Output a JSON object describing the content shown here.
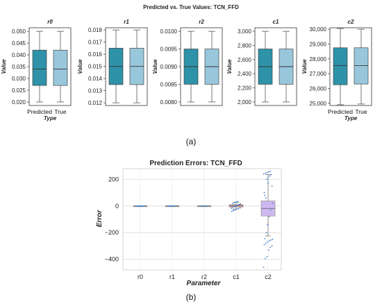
{
  "chart_data": [
    {
      "type": "box",
      "title": "Predicted vs. True Values: TCN_FFD",
      "caption": "(a)",
      "colors": {
        "Predicted": "#2e92a8",
        "True": "#98c7dc"
      },
      "panels": [
        {
          "title": "r0",
          "ylabel": "Value",
          "xlabel": "Type",
          "categories": [
            "Predicted",
            "True"
          ],
          "ylim": [
            0.0185,
            0.0515
          ],
          "yticks": [
            0.02,
            0.025,
            0.03,
            0.035,
            0.04,
            0.045,
            0.05
          ],
          "ytick_labels": [
            "0.020",
            "0.025",
            "0.030",
            "0.035",
            "0.040",
            "0.045",
            "0.050"
          ],
          "boxes": [
            {
              "whisker_low": 0.02,
              "q1": 0.027,
              "median": 0.034,
              "q3": 0.042,
              "whisker_high": 0.05
            },
            {
              "whisker_low": 0.02,
              "q1": 0.027,
              "median": 0.034,
              "q3": 0.042,
              "whisker_high": 0.05
            }
          ]
        },
        {
          "title": "r1",
          "ylabel": "Value",
          "xlabel": "",
          "categories": [
            "",
            ""
          ],
          "ylim": [
            0.01178,
            0.01818
          ],
          "yticks": [
            0.012,
            0.013,
            0.014,
            0.015,
            0.016,
            0.017,
            0.018
          ],
          "ytick_labels": [
            "0.012",
            "0.013",
            "0.014",
            "0.015",
            "0.016",
            "0.017",
            "0.018"
          ],
          "boxes": [
            {
              "whisker_low": 0.012,
              "q1": 0.0135,
              "median": 0.015,
              "q3": 0.0165,
              "whisker_high": 0.018
            },
            {
              "whisker_low": 0.012,
              "q1": 0.0135,
              "median": 0.015,
              "q3": 0.0165,
              "whisker_high": 0.018
            }
          ]
        },
        {
          "title": "r2",
          "ylabel": "Value",
          "xlabel": "",
          "categories": [
            "",
            ""
          ],
          "ylim": [
            0.0079,
            0.0101
          ],
          "yticks": [
            0.008,
            0.0085,
            0.009,
            0.0095,
            0.01
          ],
          "ytick_labels": [
            "0.0080",
            "0.0085",
            "0.0090",
            "0.0095",
            "0.0100"
          ],
          "boxes": [
            {
              "whisker_low": 0.008,
              "q1": 0.0085,
              "median": 0.009,
              "q3": 0.0095,
              "whisker_high": 0.01
            },
            {
              "whisker_low": 0.008,
              "q1": 0.0085,
              "median": 0.009,
              "q3": 0.0095,
              "whisker_high": 0.01
            }
          ]
        },
        {
          "title": "c1",
          "ylabel": "Value",
          "xlabel": "",
          "categories": [
            "",
            ""
          ],
          "ylim": [
            1950,
            3050
          ],
          "yticks": [
            2000,
            2200,
            2400,
            2600,
            2800,
            3000
          ],
          "ytick_labels": [
            "2,000",
            "2,200",
            "2,400",
            "2,600",
            "2,800",
            "3,000"
          ],
          "boxes": [
            {
              "whisker_low": 2000,
              "q1": 2250,
              "median": 2500,
              "q3": 2750,
              "whisker_high": 3000
            },
            {
              "whisker_low": 2000,
              "q1": 2250,
              "median": 2500,
              "q3": 2750,
              "whisker_high": 3000
            }
          ]
        },
        {
          "title": "c2",
          "ylabel": "Value",
          "xlabel": "Type",
          "categories": [
            "Predicted",
            "True"
          ],
          "ylim": [
            24850,
            30100
          ],
          "yticks": [
            25000,
            26000,
            27000,
            28000,
            29000,
            30000
          ],
          "ytick_labels": [
            "25,000",
            "26,000",
            "27,000",
            "28,000",
            "29,000",
            "30,000"
          ],
          "boxes": [
            {
              "whisker_low": 24900,
              "q1": 26250,
              "median": 27550,
              "q3": 28750,
              "whisker_high": 30050
            },
            {
              "whisker_low": 24950,
              "q1": 26300,
              "median": 27550,
              "q3": 28750,
              "whisker_high": 30000
            }
          ]
        }
      ]
    },
    {
      "type": "box",
      "title": "Prediction Errors: TCN_FFD",
      "caption": "(b)",
      "xlabel": "Parameter",
      "ylabel": "Error",
      "categories": [
        "r0",
        "r1",
        "r2",
        "c1",
        "c2"
      ],
      "ylim": [
        -480,
        280
      ],
      "yticks": [
        -400,
        -200,
        0,
        200
      ],
      "ytick_labels": [
        "−400",
        "−200",
        "0",
        "200"
      ],
      "grid": true,
      "box_colors": [
        "#a6cee3",
        "#b2df8a",
        "#fbb4ae",
        "#e8a090",
        "#cdb8ef"
      ],
      "point_color": "#3d7fd0",
      "boxes": [
        {
          "whisker_low": -1.5,
          "q1": -0.5,
          "median": 0,
          "q3": 0.5,
          "whisker_high": 1.5
        },
        {
          "whisker_low": -1.5,
          "q1": -0.5,
          "median": 0,
          "q3": 0.5,
          "whisker_high": 1.5
        },
        {
          "whisker_low": -1.5,
          "q1": -0.5,
          "median": 0,
          "q3": 0.5,
          "whisker_high": 1.5
        },
        {
          "whisker_low": -22,
          "q1": -8,
          "median": 1,
          "q3": 10,
          "whisker_high": 28
        },
        {
          "whisker_low": -225,
          "q1": -75,
          "median": -18,
          "q3": 38,
          "whisker_high": 235
        }
      ],
      "points": {
        "r0": [
          -1,
          0,
          1,
          0.5,
          -0.5,
          0.8,
          -0.8,
          0.2,
          -0.3,
          0.6
        ],
        "r1": [
          -1,
          0,
          1,
          0.5,
          -0.5,
          0.8,
          -0.8,
          0.2
        ],
        "r2": [
          -1,
          0,
          1,
          0.5,
          -0.5,
          0.8
        ],
        "c1": [
          -40,
          -35,
          -30,
          -25,
          -20,
          -15,
          -10,
          -5,
          0,
          5,
          10,
          15,
          20,
          25,
          30,
          35,
          12,
          -18,
          -28,
          8
        ],
        "c2": [
          -460,
          -395,
          -380,
          -330,
          -310,
          -300,
          -290,
          -280,
          -270,
          -260,
          -255,
          -250,
          -245,
          200,
          210,
          225,
          235,
          240,
          245,
          250,
          255,
          260,
          150,
          100,
          60,
          -140,
          -80,
          -30,
          20,
          80,
          -200,
          170
        ]
      }
    }
  ]
}
